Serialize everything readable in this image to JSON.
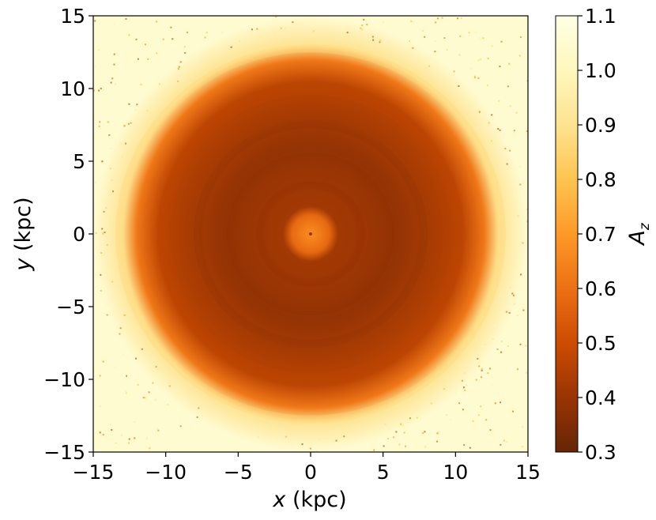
{
  "chart_data": {
    "type": "heatmap",
    "title": "",
    "xlabel": "x (kpc)",
    "xlabel_var": "x",
    "xlabel_unit": "(kpc)",
    "ylabel": "y (kpc)",
    "ylabel_var": "y",
    "ylabel_unit": "(kpc)",
    "xlim": [
      -15,
      15
    ],
    "ylim": [
      -15,
      15
    ],
    "xticks": [
      -15,
      -10,
      -5,
      0,
      5,
      10,
      15
    ],
    "yticks": [
      -15,
      -10,
      -5,
      0,
      5,
      10,
      15
    ],
    "xtick_labels": [
      "−15",
      "−10",
      "−5",
      "0",
      "5",
      "10",
      "15"
    ],
    "ytick_labels": [
      "−15",
      "−10",
      "−5",
      "0",
      "5",
      "10",
      "15"
    ],
    "colorbar": {
      "label": "A_z",
      "label_main": "A",
      "label_sub": "z",
      "vmin": 0.3,
      "vmax": 1.1,
      "ticks": [
        0.3,
        0.4,
        0.5,
        0.6,
        0.7,
        0.8,
        0.9,
        1.0,
        1.1
      ],
      "tick_labels": [
        "0.3",
        "0.4",
        "0.5",
        "0.6",
        "0.7",
        "0.8",
        "0.9",
        "1.0",
        "1.1"
      ],
      "colormap": "YlOrBr_r",
      "colors": [
        "#662506",
        "#993404",
        "#cc4c02",
        "#ec7014",
        "#fe9929",
        "#fec44f",
        "#fee391",
        "#fff7bc",
        "#ffffe5"
      ]
    },
    "grid": false,
    "features": {
      "central_ring_radius_kpc": 1.3,
      "central_ring_value": 0.62,
      "inner_disk_value": 0.42,
      "disk_edge_radius_kpc": 12,
      "outer_value": 1.05
    }
  }
}
